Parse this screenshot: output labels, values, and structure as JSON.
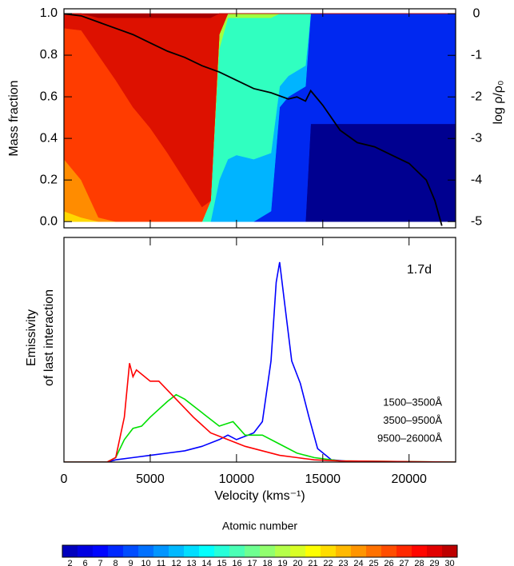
{
  "chart_data": [
    {
      "type": "stacked-area",
      "ylabel": "Mass fraction",
      "y2label": "log ρ/ρ₀",
      "xlim": [
        0,
        22700
      ],
      "ylim": [
        -0.03,
        1.023
      ],
      "y2lim": [
        -5.15,
        0.12
      ],
      "yticks": [
        {
          "value": 0,
          "label": "0.0"
        },
        {
          "value": 0.2,
          "label": "0.2"
        },
        {
          "value": 0.4,
          "label": "0.4"
        },
        {
          "value": 0.6,
          "label": "0.6"
        },
        {
          "value": 0.8,
          "label": "0.8"
        },
        {
          "value": 1,
          "label": "1.0"
        }
      ],
      "y2ticks": [
        0,
        -1,
        -2,
        -3,
        -4,
        -5
      ],
      "x": [
        0,
        1000,
        2000,
        3000,
        4000,
        5000,
        6000,
        7000,
        8000,
        8500,
        9000,
        9500,
        10000,
        11000,
        12000,
        12500,
        13000,
        14000,
        14300,
        16000,
        18000,
        20000,
        22700
      ],
      "series": [
        {
          "color": "#000090",
          "values": [
            0,
            0,
            0,
            0,
            0,
            0,
            0,
            0,
            0,
            0,
            0,
            0,
            0,
            0,
            0,
            0,
            0,
            0,
            0.47,
            0.47,
            0.47,
            0.47,
            0.47
          ]
        },
        {
          "color": "#0028f0",
          "values": [
            0,
            0,
            0,
            0,
            0,
            0,
            0,
            0,
            0,
            0,
            0,
            0,
            0,
            0,
            0.05,
            0.55,
            0.6,
            0.65,
            0.53,
            0.53,
            0.53,
            0.53,
            0.53
          ]
        },
        {
          "color": "#00b4ff",
          "values": [
            0,
            0,
            0,
            0,
            0,
            0,
            0,
            0,
            0,
            0,
            0.2,
            0.3,
            0.32,
            0.3,
            0.28,
            0.1,
            0.1,
            0.1,
            0,
            0,
            0,
            0,
            0
          ]
        },
        {
          "color": "#30ffc0",
          "values": [
            0,
            0,
            0,
            0,
            0,
            0,
            0,
            0,
            0,
            0.1,
            0.63,
            0.68,
            0.66,
            0.68,
            0.65,
            0.35,
            0.3,
            0.25,
            0,
            0,
            0,
            0,
            0
          ]
        },
        {
          "color": "#a0ff40",
          "values": [
            0,
            0,
            0,
            0,
            0,
            0,
            0,
            0,
            0,
            0,
            0.07,
            0.02,
            0.02,
            0.02,
            0.02,
            0,
            0,
            0,
            0,
            0,
            0,
            0,
            0
          ]
        },
        {
          "color": "#ffd800",
          "values": [
            0.05,
            0.02,
            0,
            0,
            0,
            0,
            0,
            0,
            0,
            0,
            0,
            0,
            0,
            0,
            0,
            0,
            0,
            0,
            0,
            0,
            0,
            0,
            0
          ]
        },
        {
          "color": "#ff8c00",
          "values": [
            0.25,
            0.18,
            0.02,
            0,
            0,
            0,
            0,
            0,
            0,
            0,
            0,
            0,
            0,
            0,
            0,
            0,
            0,
            0,
            0,
            0,
            0,
            0,
            0
          ]
        },
        {
          "color": "#ff3c00",
          "values": [
            0.63,
            0.72,
            0.78,
            0.68,
            0.55,
            0.45,
            0.33,
            0.2,
            0.07,
            0,
            0,
            0,
            0,
            0,
            0,
            0,
            0,
            0,
            0,
            0,
            0,
            0,
            0
          ]
        },
        {
          "color": "#dd1100",
          "values": [
            0.07,
            0.08,
            0.18,
            0.3,
            0.43,
            0.53,
            0.65,
            0.78,
            0.91,
            0.88,
            0.1,
            0,
            0,
            0,
            0,
            0,
            0,
            0,
            0,
            0,
            0,
            0,
            0
          ]
        },
        {
          "color": "#a80000",
          "values": [
            0,
            0,
            0.02,
            0.02,
            0.02,
            0.02,
            0.02,
            0.02,
            0.02,
            0.02,
            0,
            0,
            0,
            0,
            0,
            0,
            0,
            0,
            0,
            0,
            0,
            0,
            0
          ]
        },
        {
          "color": "#000000",
          "axis": "y2",
          "x": [
            0,
            1000,
            2000,
            3000,
            4000,
            5000,
            6000,
            7000,
            8000,
            9000,
            10000,
            11000,
            12000,
            13000,
            13500,
            14000,
            14300,
            15000,
            16000,
            17000,
            18000,
            19000,
            20000,
            21000,
            21500,
            21900
          ],
          "values": [
            0,
            -0.05,
            -0.2,
            -0.35,
            -0.5,
            -0.7,
            -0.9,
            -1.05,
            -1.25,
            -1.4,
            -1.6,
            -1.8,
            -1.9,
            -2.05,
            -2.0,
            -2.1,
            -1.85,
            -2.2,
            -2.8,
            -3.1,
            -3.2,
            -3.4,
            -3.6,
            -4.0,
            -4.5,
            -5.1
          ]
        }
      ]
    },
    {
      "type": "line",
      "xlabel": "Velocity (kms⁻¹)",
      "ylabel": [
        "Emissivity",
        "of last interaction"
      ],
      "annotation": "1.7d",
      "xlim": [
        0,
        22700
      ],
      "ylim": [
        0,
        1
      ],
      "xticks": [
        0,
        5000,
        10000,
        15000,
        20000
      ],
      "series": [
        {
          "name": "1500–3500Å",
          "color": "#0000ff",
          "x": [
            0,
            2500,
            3000,
            4000,
            5000,
            6000,
            7000,
            8000,
            9000,
            9500,
            10000,
            11000,
            11500,
            12000,
            12300,
            12500,
            12800,
            13200,
            13700,
            14200,
            14700,
            15500,
            17000,
            22700
          ],
          "values": [
            0,
            0,
            0.01,
            0.02,
            0.03,
            0.04,
            0.05,
            0.07,
            0.1,
            0.12,
            0.1,
            0.13,
            0.18,
            0.45,
            0.8,
            0.89,
            0.7,
            0.45,
            0.35,
            0.2,
            0.06,
            0.01,
            0,
            0
          ]
        },
        {
          "name": "3500–9500Å",
          "color": "#00e000",
          "x": [
            0,
            2500,
            3000,
            3500,
            4000,
            4500,
            5000,
            6000,
            6500,
            7000,
            8000,
            9000,
            9800,
            10500,
            11500,
            12500,
            13500,
            14500,
            16000,
            22700
          ],
          "values": [
            0,
            0,
            0.02,
            0.1,
            0.15,
            0.16,
            0.2,
            0.27,
            0.3,
            0.28,
            0.22,
            0.16,
            0.18,
            0.12,
            0.12,
            0.08,
            0.04,
            0.02,
            0.005,
            0
          ]
        },
        {
          "name": "9500–26000Å",
          "color": "#ff0000",
          "x": [
            0,
            2500,
            3000,
            3500,
            3800,
            4000,
            4200,
            5000,
            5500,
            6500,
            7500,
            8500,
            9500,
            10500,
            11500,
            12500,
            13500,
            14500,
            16000,
            22700
          ],
          "values": [
            0,
            0,
            0.02,
            0.2,
            0.44,
            0.38,
            0.41,
            0.36,
            0.36,
            0.28,
            0.2,
            0.13,
            0.1,
            0.07,
            0.05,
            0.03,
            0.02,
            0.01,
            0.005,
            0
          ]
        }
      ]
    },
    {
      "type": "colorbar",
      "title": "Atomic number",
      "colormap": "jet",
      "labels": [
        2,
        6,
        7,
        8,
        9,
        10,
        11,
        12,
        13,
        14,
        15,
        16,
        17,
        18,
        19,
        20,
        21,
        22,
        23,
        24,
        25,
        26,
        27,
        28,
        29,
        30
      ]
    }
  ]
}
